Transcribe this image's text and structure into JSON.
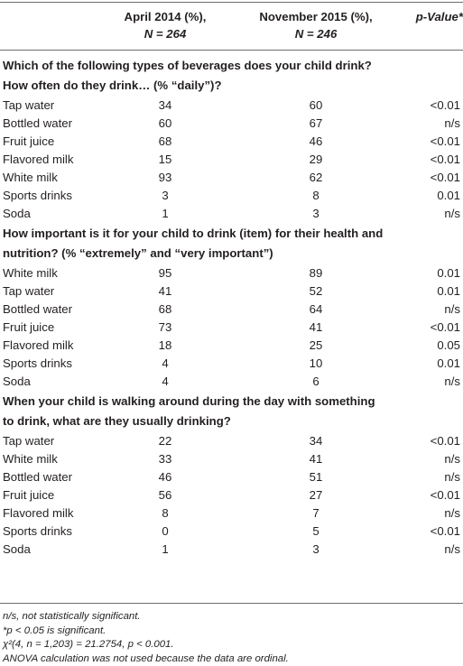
{
  "header": {
    "col1_line1": "April 2014 (%),",
    "col1_line2": "N = 264",
    "col2_line1": "November 2015 (%),",
    "col2_line2": "N = 246",
    "col3": "p-Value*"
  },
  "sections": [
    {
      "question_lines": [
        "Which of the following types of beverages does your child drink?",
        "How often do they drink… (% “daily”)?"
      ],
      "rows": [
        {
          "item": "Tap water",
          "apr2014": "34",
          "nov2015": "60",
          "p": "<0.01"
        },
        {
          "item": "Bottled water",
          "apr2014": "60",
          "nov2015": "67",
          "p": "n/s"
        },
        {
          "item": "Fruit juice",
          "apr2014": "68",
          "nov2015": "46",
          "p": "<0.01"
        },
        {
          "item": "Flavored milk",
          "apr2014": "15",
          "nov2015": "29",
          "p": "<0.01"
        },
        {
          "item": "White milk",
          "apr2014": "93",
          "nov2015": "62",
          "p": "<0.01"
        },
        {
          "item": "Sports drinks",
          "apr2014": "3",
          "nov2015": "8",
          "p": "0.01"
        },
        {
          "item": "Soda",
          "apr2014": "1",
          "nov2015": "3",
          "p": "n/s"
        }
      ]
    },
    {
      "question_lines": [
        "How important is it for your child to drink (item) for their health and",
        "nutrition? (% “extremely” and “very important”)"
      ],
      "rows": [
        {
          "item": "White milk",
          "apr2014": "95",
          "nov2015": "89",
          "p": "0.01"
        },
        {
          "item": "Tap water",
          "apr2014": "41",
          "nov2015": "52",
          "p": "0.01"
        },
        {
          "item": "Bottled water",
          "apr2014": "68",
          "nov2015": "64",
          "p": "n/s"
        },
        {
          "item": "Fruit juice",
          "apr2014": "73",
          "nov2015": "41",
          "p": "<0.01"
        },
        {
          "item": "Flavored milk",
          "apr2014": "18",
          "nov2015": "25",
          "p": "0.05"
        },
        {
          "item": "Sports drinks",
          "apr2014": "4",
          "nov2015": "10",
          "p": "0.01"
        },
        {
          "item": "Soda",
          "apr2014": "4",
          "nov2015": "6",
          "p": "n/s"
        }
      ]
    },
    {
      "question_lines": [
        "When your child is walking around during the day with something",
        "to drink, what are they usually drinking?"
      ],
      "rows": [
        {
          "item": "Tap water",
          "apr2014": "22",
          "nov2015": "34",
          "p": "<0.01"
        },
        {
          "item": "White milk",
          "apr2014": "33",
          "nov2015": "41",
          "p": "n/s"
        },
        {
          "item": "Bottled water",
          "apr2014": "46",
          "nov2015": "51",
          "p": "n/s"
        },
        {
          "item": "Fruit juice",
          "apr2014": "56",
          "nov2015": "27",
          "p": "<0.01"
        },
        {
          "item": "Flavored milk",
          "apr2014": "8",
          "nov2015": "7",
          "p": "n/s"
        },
        {
          "item": "Sports drinks",
          "apr2014": "0",
          "nov2015": "5",
          "p": "<0.01"
        },
        {
          "item": "Soda",
          "apr2014": "1",
          "nov2015": "3",
          "p": "n/s"
        }
      ]
    }
  ],
  "footnotes": [
    "n/s, not statistically significant.",
    "*p < 0.05 is significant.",
    "χ²(4, n = 1,203) = 21.2754, p < 0.001.",
    "ANOVA calculation was not used because the data are ordinal."
  ]
}
